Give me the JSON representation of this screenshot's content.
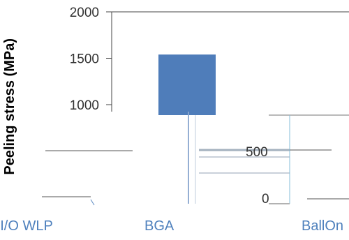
{
  "chart_data": {
    "type": "bar",
    "title": "",
    "xlabel": "",
    "ylabel": "Peeling stress (MPa)",
    "ylim": [
      0,
      2000
    ],
    "yticks": [
      1000,
      1500,
      2000
    ],
    "yticks_partial": [
      "500",
      "0"
    ],
    "categories": [
      "Fan-in I/O WLP",
      "BGA",
      "BallOn"
    ],
    "series": [
      {
        "values": [
          null,
          1540,
          null
        ]
      }
    ],
    "grid": false,
    "legend": "none",
    "colors": {
      "bar": "#4F7DBA",
      "axis": "#333333",
      "label": "#4F81BD",
      "text": "#000000"
    }
  }
}
